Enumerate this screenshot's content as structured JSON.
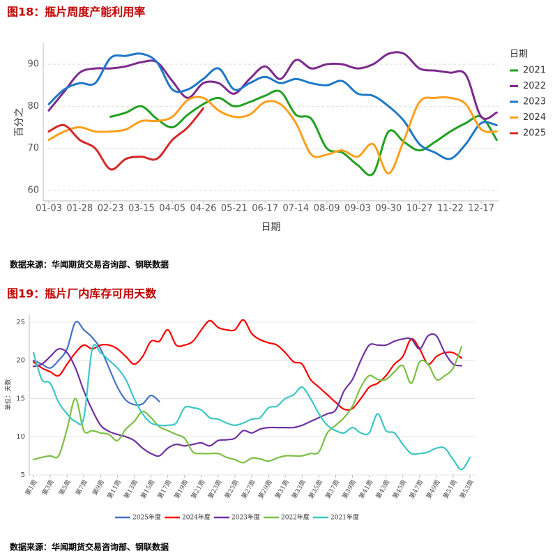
{
  "chart_data": [
    {
      "type": "line",
      "title": "图18：瓶片周度产能利用率",
      "x_label": "日期",
      "y_label": "百分之",
      "legend_title": "日期",
      "source": "数据来源：华闻期货交易咨询部、钢联数据",
      "grid": true,
      "legend": "right",
      "categories": [
        "01-03",
        null,
        "01-28",
        null,
        "02-23",
        null,
        "03-15",
        null,
        "04-05",
        null,
        "04-26",
        null,
        "05-21",
        null,
        "06-17",
        null,
        "07-14",
        null,
        "08-09",
        null,
        "09-03",
        null,
        "09-30",
        null,
        "10-27",
        null,
        "11-22",
        null,
        "12-17",
        null
      ],
      "ylim": [
        57.5,
        95
      ],
      "yticks": [
        60,
        70,
        80,
        90
      ],
      "series": [
        {
          "name": "2021",
          "color": "#22a022",
          "values": [
            null,
            null,
            null,
            null,
            77.5,
            78.5,
            80,
            77,
            75,
            78,
            80.5,
            82,
            80,
            81,
            82.5,
            83.5,
            78,
            77,
            70,
            69,
            66,
            64,
            74,
            71.5,
            69.5,
            71.5,
            74,
            76,
            77.5,
            72
          ]
        },
        {
          "name": "2022",
          "color": "#7b2a8c",
          "values": [
            79,
            83.5,
            88,
            89,
            89,
            89.5,
            90.5,
            90.5,
            86,
            82,
            85.5,
            85.5,
            83,
            86.5,
            89.5,
            86.5,
            91,
            89,
            90,
            90,
            89,
            90,
            92.5,
            92.5,
            89,
            88.5,
            88,
            87.5,
            77.5,
            78.5
          ]
        },
        {
          "name": "2023",
          "color": "#1f77c8",
          "values": [
            80.5,
            84,
            85.5,
            85.5,
            91.5,
            92,
            92.5,
            90.5,
            84,
            84,
            86.5,
            89,
            84,
            85.5,
            87,
            85.5,
            86.5,
            85.5,
            85,
            86,
            83,
            82.5,
            80,
            76.5,
            71,
            69,
            67.5,
            71,
            76,
            75.5
          ]
        },
        {
          "name": "2024",
          "color": "#ff9f1c",
          "values": [
            72,
            74,
            75,
            74,
            74,
            74.5,
            76.5,
            76.5,
            77.5,
            81.5,
            82,
            79,
            77.5,
            78,
            81,
            80.5,
            76,
            68.5,
            68.5,
            69.5,
            68,
            71,
            64,
            72,
            81,
            82,
            82,
            80.5,
            74.5,
            74
          ]
        },
        {
          "name": "2025",
          "color": "#d62728",
          "values": [
            74,
            75.5,
            72,
            70,
            65,
            67.5,
            68,
            67.5,
            72,
            75,
            79.5,
            null,
            null,
            null,
            null,
            null,
            null,
            null,
            null,
            null,
            null,
            null,
            null,
            null,
            null,
            null,
            null,
            null,
            null,
            null
          ]
        }
      ]
    },
    {
      "type": "line",
      "title": "图19：瓶片厂内库存可用天数",
      "y_label": "单位：天数",
      "source": "数据来源：华闻期货交易咨询部、钢联数据",
      "grid": true,
      "legend": "bottom",
      "categories": [
        "第1周",
        null,
        "第3周",
        null,
        "第5周",
        null,
        "第7周",
        null,
        "第9周",
        null,
        "第11周",
        null,
        "第13周",
        null,
        "第15周",
        null,
        "第17周",
        null,
        "第19周",
        null,
        "第21周",
        null,
        "第23周",
        null,
        "第25周",
        null,
        "第27周",
        null,
        "第29周",
        null,
        "第31周",
        null,
        "第33周",
        null,
        "第35周",
        null,
        "第37周",
        null,
        "第39周",
        null,
        "第41周",
        null,
        "第43周",
        null,
        "第45周",
        null,
        "第47周",
        null,
        "第49周",
        null,
        "第51周",
        null,
        "第53周"
      ],
      "ylim": [
        5,
        26
      ],
      "yticks": [
        5,
        10,
        15,
        20,
        25
      ],
      "series": [
        {
          "name": "2025年度",
          "color": "#4472c4",
          "values": [
            20,
            19.5,
            19,
            20,
            21.5,
            25,
            24,
            23,
            21.5,
            19,
            16.5,
            14.8,
            14.2,
            14.3,
            15.4,
            14.6,
            null,
            null,
            null,
            null,
            null,
            null,
            null,
            null,
            null,
            null,
            null,
            null,
            null,
            null,
            null,
            null,
            null,
            null,
            null,
            null,
            null,
            null,
            null,
            null,
            null,
            null,
            null,
            null,
            null,
            null,
            null,
            null,
            null,
            null,
            null,
            null,
            null
          ]
        },
        {
          "name": "2024年度",
          "color": "#ff0000",
          "values": [
            19.8,
            19,
            18.5,
            18,
            19.5,
            21,
            22,
            21.5,
            22,
            22,
            21.5,
            20.5,
            19.5,
            20.5,
            22.5,
            22.5,
            24,
            22,
            22,
            22.5,
            24,
            25.2,
            24.3,
            24,
            24,
            25.3,
            23.5,
            22.7,
            22.3,
            22,
            21,
            19.8,
            19.5,
            17.5,
            16.5,
            15.5,
            14.5,
            13.6,
            13.7,
            15,
            16.5,
            17,
            18,
            19.5,
            20.5,
            22.8,
            21.5,
            19.5,
            20.5,
            21,
            21,
            20.3,
            null
          ]
        },
        {
          "name": "2023年度",
          "color": "#7030a0",
          "values": [
            19.2,
            19.5,
            20.5,
            21.5,
            21,
            19,
            16,
            13.5,
            11.5,
            10.7,
            10.3,
            10,
            9.5,
            8.5,
            7.8,
            7.5,
            8.5,
            9,
            8.8,
            9,
            9.2,
            8.8,
            9.5,
            9.6,
            9.8,
            10.8,
            10.5,
            11,
            11.2,
            11.2,
            11.2,
            11.2,
            11.5,
            12,
            12.5,
            13,
            13.5,
            16,
            17.5,
            20,
            22,
            22,
            22,
            22.5,
            22.8,
            22.8,
            21.5,
            23.2,
            23.2,
            21,
            19.5,
            19.3,
            null
          ]
        },
        {
          "name": "2022年度",
          "color": "#7cbf44",
          "values": [
            7,
            7.3,
            7.5,
            7.5,
            11,
            15,
            10.8,
            10.8,
            10.5,
            10.3,
            9.5,
            11,
            12,
            13.3,
            12.5,
            11.3,
            10.8,
            10.3,
            9.8,
            8,
            7.8,
            7.8,
            7.8,
            7.3,
            7,
            6.6,
            7.2,
            7.1,
            6.8,
            7.2,
            7.5,
            7.5,
            7.5,
            7.8,
            8,
            10.5,
            11.5,
            12.5,
            14,
            16.5,
            18,
            17.5,
            17.5,
            18.5,
            19.3,
            17,
            19.8,
            19.5,
            17.5,
            18,
            19,
            21.8,
            null
          ]
        },
        {
          "name": "2021年度",
          "color": "#3cc6c6",
          "values": [
            21,
            17.5,
            17,
            14.5,
            13,
            12,
            12.5,
            21.5,
            21,
            20,
            19,
            17.5,
            15,
            13,
            11.8,
            11.5,
            11.5,
            11.8,
            13.8,
            13.8,
            13.5,
            12.5,
            12.3,
            11.8,
            11.5,
            11.8,
            12.3,
            12.5,
            13.8,
            14,
            15,
            15.5,
            16.5,
            15,
            13,
            11.5,
            10.8,
            10.5,
            11.2,
            10.5,
            10.5,
            13,
            10.8,
            10.5,
            9,
            7.8,
            7.8,
            8,
            8.5,
            8.5,
            7,
            5.7,
            7.3
          ]
        }
      ]
    }
  ]
}
